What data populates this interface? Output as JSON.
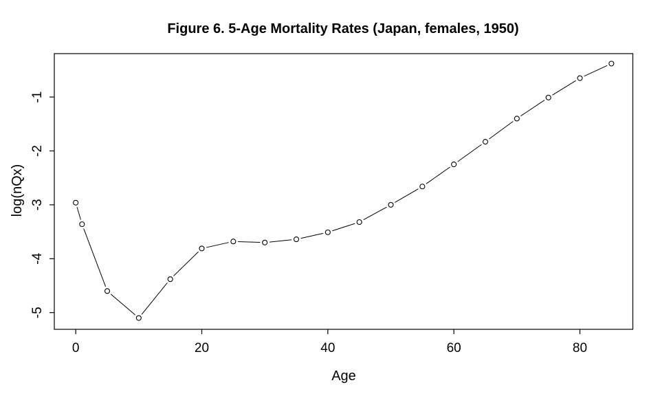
{
  "chart_data": {
    "type": "line",
    "style": "r-base-plot-type-b",
    "title": "Figure 6. 5-Age Mortality Rates (Japan, females, 1950)",
    "xlabel": "Age",
    "ylabel": "log(nQx)",
    "x": [
      0,
      1,
      5,
      10,
      15,
      20,
      25,
      30,
      35,
      40,
      45,
      50,
      55,
      60,
      65,
      70,
      75,
      80,
      85
    ],
    "y": [
      -2.96,
      -3.36,
      -4.6,
      -5.1,
      -4.38,
      -3.81,
      -3.68,
      -3.7,
      -3.64,
      -3.51,
      -3.32,
      -3.0,
      -2.66,
      -2.25,
      -1.83,
      -1.4,
      -1.01,
      -0.65,
      -0.38
    ],
    "xlim": [
      -3.4,
      88.4
    ],
    "ylim": [
      -5.31,
      -0.195
    ],
    "xticks": [
      0,
      20,
      40,
      60,
      80
    ],
    "yticks": [
      -1,
      -2,
      -3,
      -4,
      -5
    ],
    "xtick_labels": [
      "0",
      "20",
      "40",
      "60",
      "80"
    ],
    "ytick_labels": [
      "-1",
      "-2",
      "-3",
      "-4",
      "-5"
    ],
    "grid": false,
    "legend_position": "none",
    "marker": "open-circle",
    "colors": {
      "foreground": "#000000",
      "background": "#ffffff"
    }
  }
}
